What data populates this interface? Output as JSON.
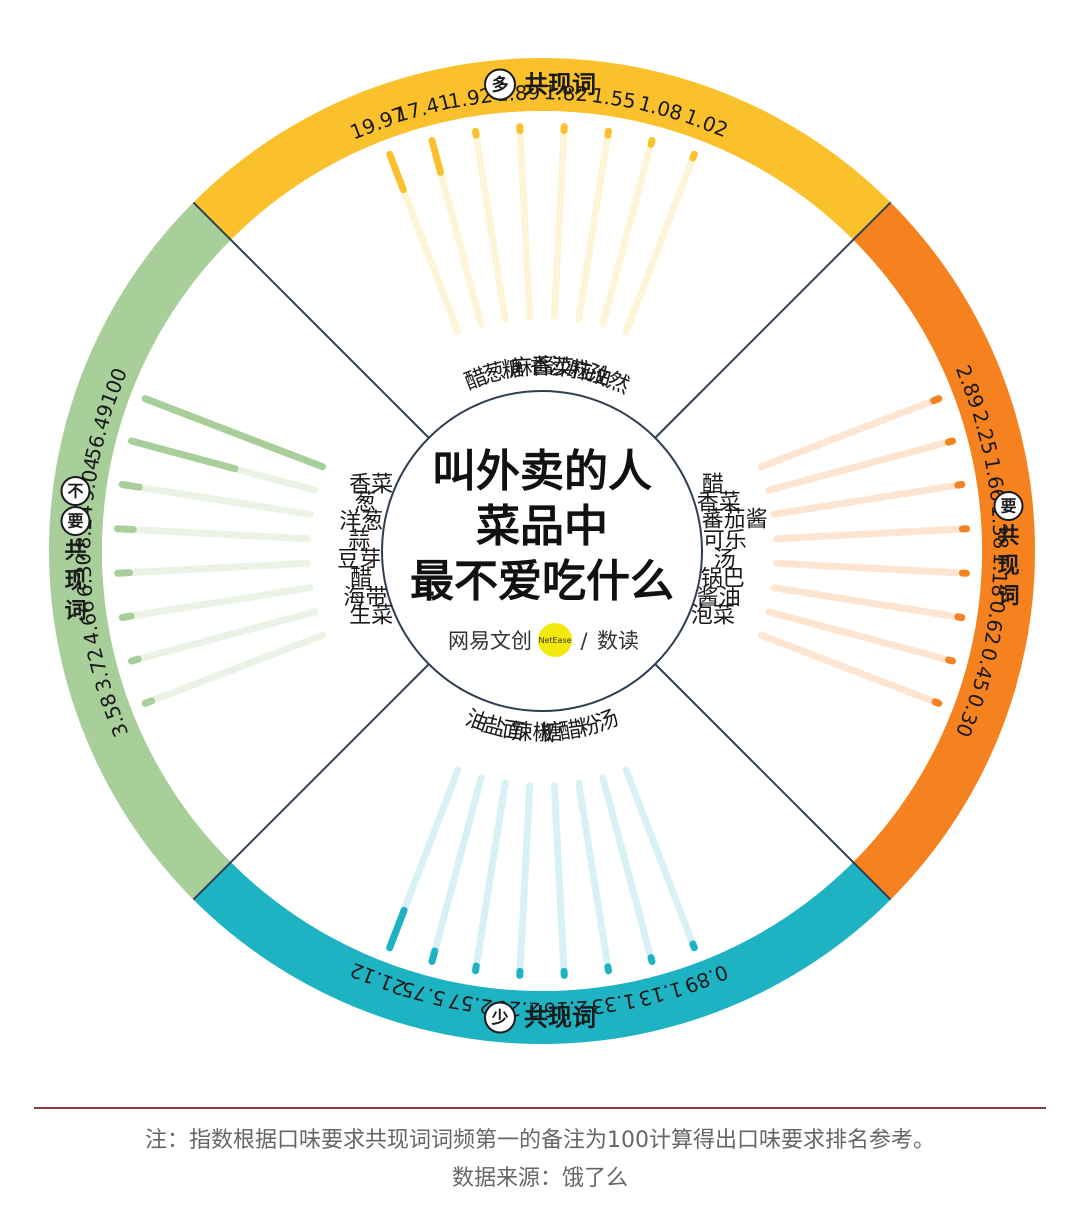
{
  "title_lines": [
    "叫外卖的人",
    "菜品中",
    "最不爱吃什么"
  ],
  "brand": {
    "name": "网易文创",
    "badge": "NetEase",
    "divider": "/",
    "sub": "数读"
  },
  "note": "注：指数根据口味要求共现词词频第一的备注为100计算得出口味要求排名参考。",
  "source": "数据来源：饿了么",
  "chart_data": {
    "type": "radial-bar",
    "max_value": 100,
    "groups": [
      {
        "key": "top",
        "badge": "多",
        "name": "共现词",
        "color": "#FBC12D",
        "track_color": "#FEF4D8",
        "categories": [
          "醋",
          "葱",
          "糖",
          "麻酱",
          "香菜",
          "沙拉",
          "麻油",
          "孜然"
        ],
        "values": [
          19.97,
          17.41,
          1.92,
          1.89,
          1.82,
          1.55,
          1.08,
          1.02
        ],
        "value_labels": [
          "19.97",
          "17.41",
          "1.92",
          "1.89",
          "1.82",
          "1.55",
          "1.08",
          "1.02"
        ]
      },
      {
        "key": "right",
        "badge": "要",
        "name": "共现词",
        "color": "#F5821F",
        "track_color": "#FDE5D2",
        "categories": [
          "醋",
          "香菜",
          "蕃茄酱",
          "可乐",
          "汤",
          "锅巴",
          "酱油",
          "泡菜"
        ],
        "values": [
          2.89,
          2.25,
          1.66,
          1.38,
          1.18,
          0.62,
          0.45,
          0.3
        ],
        "value_labels": [
          "2.89",
          "2.25",
          "1.66",
          "1.38",
          "1.18",
          "0.62",
          "0.45",
          "0.30"
        ]
      },
      {
        "key": "bottom",
        "badge": "少",
        "name": "共现词",
        "color": "#1DB3C3",
        "track_color": "#D8F1F4",
        "categories": [
          "油",
          "盐",
          "面",
          "辣椒",
          "糖",
          "醋",
          "粉",
          "汤"
        ],
        "values": [
          21.12,
          5.75,
          2.57,
          2.2,
          2.16,
          1.33,
          1.13,
          0.89
        ],
        "value_labels": [
          "21.12",
          "5.75",
          "2.57",
          "2.20",
          "2.16",
          "1.33",
          "1.13",
          "0.89"
        ]
      },
      {
        "key": "left",
        "badge": "不要",
        "name": "共现词",
        "color": "#A8CF9A",
        "track_color": "#EAF3E5",
        "categories": [
          "香菜",
          "葱",
          "洋葱",
          "蒜",
          "豆芽",
          "醋",
          "海带",
          "生菜"
        ],
        "values": [
          100,
          56.49,
          9.04,
          8.24,
          6.3,
          4.66,
          3.72,
          3.58
        ],
        "value_labels": [
          "100",
          "56.49",
          "9.04",
          "8.24",
          "6.30",
          "4.66",
          "3.72",
          "3.58"
        ]
      }
    ]
  }
}
